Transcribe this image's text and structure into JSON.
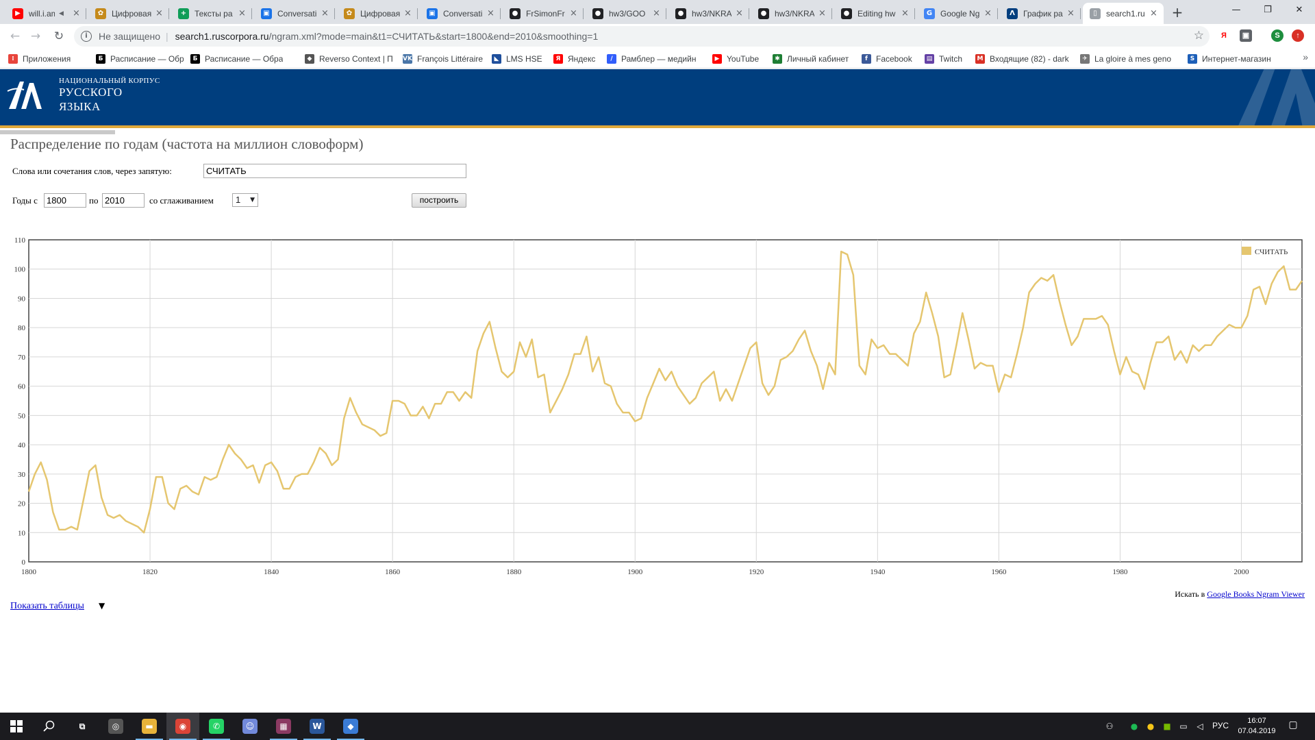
{
  "browser": {
    "tabs": [
      {
        "title": "will.i.am",
        "fav": "▶",
        "fav_color": "#ff0000",
        "has_audio": true
      },
      {
        "title": "Цифровая",
        "fav": "✿",
        "fav_color": "#c58a1b"
      },
      {
        "title": "Тексты ра",
        "fav": "+",
        "fav_color": "#0f9d58"
      },
      {
        "title": "Conversati",
        "fav": "▣",
        "fav_color": "#1a73e8"
      },
      {
        "title": "Цифровая",
        "fav": "✿",
        "fav_color": "#c58a1b"
      },
      {
        "title": "Conversati",
        "fav": "▣",
        "fav_color": "#1a73e8"
      },
      {
        "title": "FrSimonFr",
        "fav": "●",
        "fav_color": "#202124"
      },
      {
        "title": "hw3/GOO",
        "fav": "●",
        "fav_color": "#202124"
      },
      {
        "title": "hw3/NKRA",
        "fav": "●",
        "fav_color": "#202124"
      },
      {
        "title": "hw3/NKRA",
        "fav": "●",
        "fav_color": "#202124"
      },
      {
        "title": "Editing hw",
        "fav": "●",
        "fav_color": "#202124"
      },
      {
        "title": "Google Ng",
        "fav": "G",
        "fav_color": "#4285f4"
      },
      {
        "title": "График ра",
        "fav": "Λ",
        "fav_color": "#003e7e"
      },
      {
        "title": "search1.ru",
        "fav": "▯",
        "fav_color": "#9aa0a6",
        "active": true
      }
    ],
    "audio_icon": "speaker-icon",
    "new_tab_label": "+",
    "window_controls": {
      "minimize": "—",
      "maximize": "❐",
      "close": "✕"
    },
    "nav": {
      "back": "←",
      "forward": "→",
      "reload": "↻"
    },
    "security_label": "Не защищено",
    "url_host": "search1.ruscorpora.ru",
    "url_path": "/ngram.xml?mode=main&t1=СЧИТАТЬ&start=1800&end=2010&smoothing=1",
    "bookmarks": [
      {
        "label": "Приложения",
        "fav": "⁞",
        "fav_color": "#e8453c"
      },
      {
        "label": "Расписание — Обра",
        "fav": "Б",
        "fav_color": "#000000"
      },
      {
        "label": "Расписание — Обра",
        "fav": "Б",
        "fav_color": "#000000"
      },
      {
        "label": "Reverso Context | Пе",
        "fav": "◆",
        "fav_color": "#555555"
      },
      {
        "label": "François Littéraire",
        "fav": "VK",
        "fav_color": "#4a76a8"
      },
      {
        "label": "LMS HSE",
        "fav": "◣",
        "fav_color": "#1f4f9c"
      },
      {
        "label": "Яндекс",
        "fav": "Я",
        "fav_color": "#ff0000"
      },
      {
        "label": "Рамблер — медийн",
        "fav": "/",
        "fav_color": "#315efb"
      },
      {
        "label": "YouTube",
        "fav": "▶",
        "fav_color": "#ff0000"
      },
      {
        "label": "Личный кабинет",
        "fav": "✱",
        "fav_color": "#1e7e34"
      },
      {
        "label": "Facebook",
        "fav": "f",
        "fav_color": "#3b5998"
      },
      {
        "label": "Twitch",
        "fav": "▤",
        "fav_color": "#6441a5"
      },
      {
        "label": "Входящие (82) - dark",
        "fav": "M",
        "fav_color": "#d93025"
      },
      {
        "label": "La gloire à mes geno",
        "fav": "✈",
        "fav_color": "#777777"
      },
      {
        "label": "Интернет-магазин",
        "fav": "S",
        "fav_color": "#1d5fb8"
      }
    ],
    "bookmarks_more": "»"
  },
  "header": {
    "logo_line1": "НАЦИОНАЛЬНЫЙ КОРПУС",
    "logo_line2": "РУССКОГО",
    "logo_line3": "ЯЗЫКА",
    "colors": {
      "band": "#003e7e",
      "accent_line": "#e0a83a"
    }
  },
  "page": {
    "title": "Распределение по годам (частота на миллион словоформ)",
    "words_label": "Слова или сочетания слов, через запятую:",
    "words_value": "СЧИТАТЬ",
    "years_from_label": "Годы с",
    "year_from": "1800",
    "years_to_label": "по",
    "year_to": "2010",
    "smoothing_label": "со сглаживанием",
    "smoothing_value": "1",
    "build_button": "построить",
    "search_in_label": "Искать в",
    "search_in_link": "Google Books Ngram Viewer",
    "show_tables": "Показать таблицы",
    "show_tables_arrow": "▼"
  },
  "chart_data": {
    "type": "line",
    "title": "",
    "xlabel": "",
    "ylabel": "",
    "xlim": [
      1800,
      2010
    ],
    "ylim": [
      0,
      110
    ],
    "x_ticks": [
      1800,
      1820,
      1840,
      1860,
      1880,
      1900,
      1920,
      1940,
      1960,
      1980,
      2000
    ],
    "y_ticks": [
      0,
      10,
      20,
      30,
      40,
      50,
      60,
      70,
      80,
      90,
      100,
      110
    ],
    "grid": true,
    "legend_position": "top-right",
    "series": [
      {
        "name": "СЧИТАТЬ",
        "color": "#e5c66f",
        "x": [
          1800,
          1801,
          1802,
          1803,
          1804,
          1805,
          1806,
          1807,
          1808,
          1809,
          1810,
          1811,
          1812,
          1813,
          1814,
          1815,
          1816,
          1817,
          1818,
          1819,
          1820,
          1821,
          1822,
          1823,
          1824,
          1825,
          1826,
          1827,
          1828,
          1829,
          1830,
          1831,
          1832,
          1833,
          1834,
          1835,
          1836,
          1837,
          1838,
          1839,
          1840,
          1841,
          1842,
          1843,
          1844,
          1845,
          1846,
          1847,
          1848,
          1849,
          1850,
          1851,
          1852,
          1853,
          1854,
          1855,
          1856,
          1857,
          1858,
          1859,
          1860,
          1861,
          1862,
          1863,
          1864,
          1865,
          1866,
          1867,
          1868,
          1869,
          1870,
          1871,
          1872,
          1873,
          1874,
          1875,
          1876,
          1877,
          1878,
          1879,
          1880,
          1881,
          1882,
          1883,
          1884,
          1885,
          1886,
          1887,
          1888,
          1889,
          1890,
          1891,
          1892,
          1893,
          1894,
          1895,
          1896,
          1897,
          1898,
          1899,
          1900,
          1901,
          1902,
          1903,
          1904,
          1905,
          1906,
          1907,
          1908,
          1909,
          1910,
          1911,
          1912,
          1913,
          1914,
          1915,
          1916,
          1917,
          1918,
          1919,
          1920,
          1921,
          1922,
          1923,
          1924,
          1925,
          1926,
          1927,
          1928,
          1929,
          1930,
          1931,
          1932,
          1933,
          1934,
          1935,
          1936,
          1937,
          1938,
          1939,
          1940,
          1941,
          1942,
          1943,
          1944,
          1945,
          1946,
          1947,
          1948,
          1949,
          1950,
          1951,
          1952,
          1953,
          1954,
          1955,
          1956,
          1957,
          1958,
          1959,
          1960,
          1961,
          1962,
          1963,
          1964,
          1965,
          1966,
          1967,
          1968,
          1969,
          1970,
          1971,
          1972,
          1973,
          1974,
          1975,
          1976,
          1977,
          1978,
          1979,
          1980,
          1981,
          1982,
          1983,
          1984,
          1985,
          1986,
          1987,
          1988,
          1989,
          1990,
          1991,
          1992,
          1993,
          1994,
          1995,
          1996,
          1997,
          1998,
          1999,
          2000,
          2001,
          2002,
          2003,
          2004,
          2005,
          2006,
          2007,
          2008,
          2009,
          2010
        ],
        "values": [
          24,
          30,
          34,
          28,
          17,
          11,
          11,
          12,
          11,
          21,
          31,
          33,
          22,
          16,
          15,
          16,
          14,
          13,
          12,
          10,
          18,
          29,
          29,
          20,
          18,
          25,
          26,
          24,
          23,
          29,
          28,
          29,
          35,
          40,
          37,
          35,
          32,
          33,
          27,
          33,
          34,
          31,
          25,
          25,
          29,
          30,
          30,
          34,
          39,
          37,
          33,
          35,
          49,
          56,
          51,
          47,
          46,
          45,
          43,
          44,
          55,
          55,
          54,
          50,
          50,
          53,
          49,
          54,
          54,
          58,
          58,
          55,
          58,
          56,
          72,
          78,
          82,
          73,
          65,
          63,
          65,
          75,
          70,
          76,
          63,
          64,
          51,
          55,
          59,
          64,
          71,
          71,
          77,
          65,
          70,
          61,
          60,
          54,
          51,
          51,
          48,
          49,
          56,
          61,
          66,
          62,
          65,
          60,
          57,
          54,
          56,
          61,
          63,
          65,
          55,
          59,
          55,
          61,
          67,
          73,
          75,
          61,
          57,
          60,
          69,
          70,
          72,
          76,
          79,
          72,
          67,
          59,
          68,
          64,
          106,
          105,
          98,
          67,
          64,
          76,
          73,
          74,
          71,
          71,
          69,
          67,
          78,
          82,
          92,
          85,
          77,
          63,
          64,
          74,
          85,
          76,
          66,
          68,
          67,
          67,
          58,
          64,
          63,
          71,
          80,
          92,
          95,
          97,
          96,
          98,
          89,
          81,
          74,
          77,
          83,
          83,
          83,
          84,
          81,
          72,
          64,
          70,
          65,
          64,
          59,
          68,
          75,
          75,
          77,
          69,
          72,
          68,
          74,
          72,
          74,
          74,
          77,
          79,
          81,
          80,
          80,
          84,
          93,
          94,
          88,
          95,
          99,
          101,
          93,
          93,
          96
        ]
      }
    ]
  },
  "taskbar": {
    "start_icon": "windows-start-icon",
    "search_icon": "search-icon",
    "apps": [
      {
        "name": "task-view-icon",
        "glyph": "⧉",
        "color": "transparent"
      },
      {
        "name": "overwatch-icon",
        "glyph": "◎",
        "color": "#555555"
      },
      {
        "name": "file-explorer-icon",
        "glyph": "▬",
        "color": "#e8b33a",
        "open": true
      },
      {
        "name": "chrome-icon",
        "glyph": "◉",
        "color": "#db4437",
        "active": true
      },
      {
        "name": "whatsapp-icon",
        "glyph": "✆",
        "color": "#25d366",
        "open": true
      },
      {
        "name": "discord-icon",
        "glyph": "☺",
        "color": "#7289da"
      },
      {
        "name": "winrar-icon",
        "glyph": "▦",
        "color": "#8b3a62",
        "open": true
      },
      {
        "name": "word-icon",
        "glyph": "W",
        "color": "#2b579a",
        "open": true
      },
      {
        "name": "app-icon",
        "glyph": "◆",
        "color": "#3a7bd5",
        "open": true
      }
    ],
    "tray_lang": "РУС",
    "time": "16:07",
    "date": "07.04.2019",
    "notification_icon": "notification-icon"
  }
}
